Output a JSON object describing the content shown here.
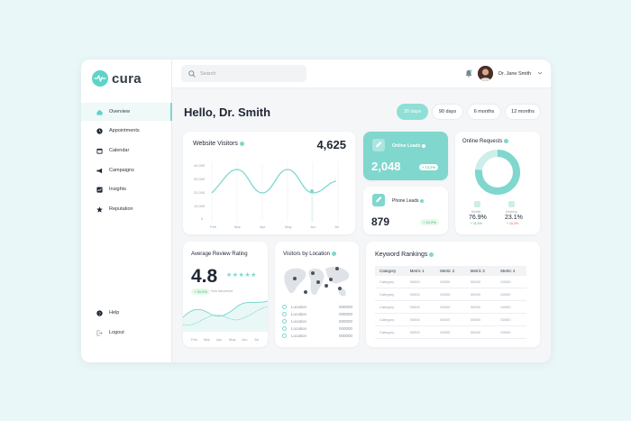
{
  "brand": {
    "name": "cura",
    "accent": "#7fd7ce",
    "accent_dark": "#5fd3c7"
  },
  "sidebar": {
    "items": [
      {
        "label": "Overview",
        "icon": "home-icon",
        "active": true
      },
      {
        "label": "Appointments",
        "icon": "clock-icon",
        "active": false
      },
      {
        "label": "Calendar",
        "icon": "calendar-icon",
        "active": false
      },
      {
        "label": "Campaigns",
        "icon": "megaphone-icon",
        "active": false
      },
      {
        "label": "Insights",
        "icon": "chart-icon",
        "active": false
      },
      {
        "label": "Reputation",
        "icon": "star-icon",
        "active": false
      }
    ],
    "bottom": [
      {
        "label": "Help",
        "icon": "help-icon"
      },
      {
        "label": "Logout",
        "icon": "logout-icon"
      }
    ]
  },
  "topbar": {
    "search_placeholder": "Search",
    "user_name": "Dr. Jane Smith"
  },
  "main": {
    "greeting": "Hello, Dr. Smith",
    "ranges": [
      "30 days",
      "90 days",
      "6 months",
      "12 months"
    ],
    "active_range": "30 days"
  },
  "website_visitors": {
    "title": "Website Visitors",
    "total": "4,625",
    "y_ticks": [
      "40,000",
      "30,000",
      "20,000",
      "10,000",
      "0"
    ],
    "x_ticks": [
      "Feb",
      "Mar",
      "Apr",
      "May",
      "Jun",
      "Jul"
    ]
  },
  "online_leads": {
    "title": "Online Leads",
    "value": "2,048",
    "change": "+ 13.2%"
  },
  "phone_leads": {
    "title": "Phone Leads",
    "value": "879",
    "change": "+ 10.2%"
  },
  "online_requests": {
    "title": "Online Requests",
    "mobile_label": "Mobile",
    "mobile_value": "76.9%",
    "mobile_change": "+ 11.4%",
    "desktop_label": "Desktop",
    "desktop_value": "23.1%",
    "desktop_change": "+ 10.2%",
    "mobile_fraction": 0.769
  },
  "review_rating": {
    "title": "Average Review Rating",
    "value": "4.8",
    "stars": "★★★★★",
    "change": "+ 20.2%",
    "change_note": "from last period",
    "x_ticks": [
      "Feb",
      "Mar",
      "Apr",
      "May",
      "Jun",
      "Jul"
    ]
  },
  "visitors_location": {
    "title": "Visitors by Location",
    "rows": [
      {
        "label": "Location",
        "value": "000000"
      },
      {
        "label": "Location",
        "value": "000000"
      },
      {
        "label": "Location",
        "value": "000000"
      },
      {
        "label": "Location",
        "value": "000000"
      },
      {
        "label": "Location",
        "value": "000000"
      }
    ]
  },
  "keyword_rankings": {
    "title": "Keyword Rankings",
    "headers": [
      "Category",
      "Metric 1",
      "Metric 2",
      "Metric 3",
      "Metric 4"
    ],
    "rows": [
      [
        "Category",
        "00000",
        "00000",
        "00000",
        "00000"
      ],
      [
        "Category",
        "00000",
        "00000",
        "00000",
        "00000"
      ],
      [
        "Category",
        "00000",
        "00000",
        "00000",
        "00000"
      ],
      [
        "Category",
        "00000",
        "00000",
        "00000",
        "00000"
      ],
      [
        "Category",
        "00000",
        "00000",
        "00000",
        "00000"
      ]
    ]
  }
}
